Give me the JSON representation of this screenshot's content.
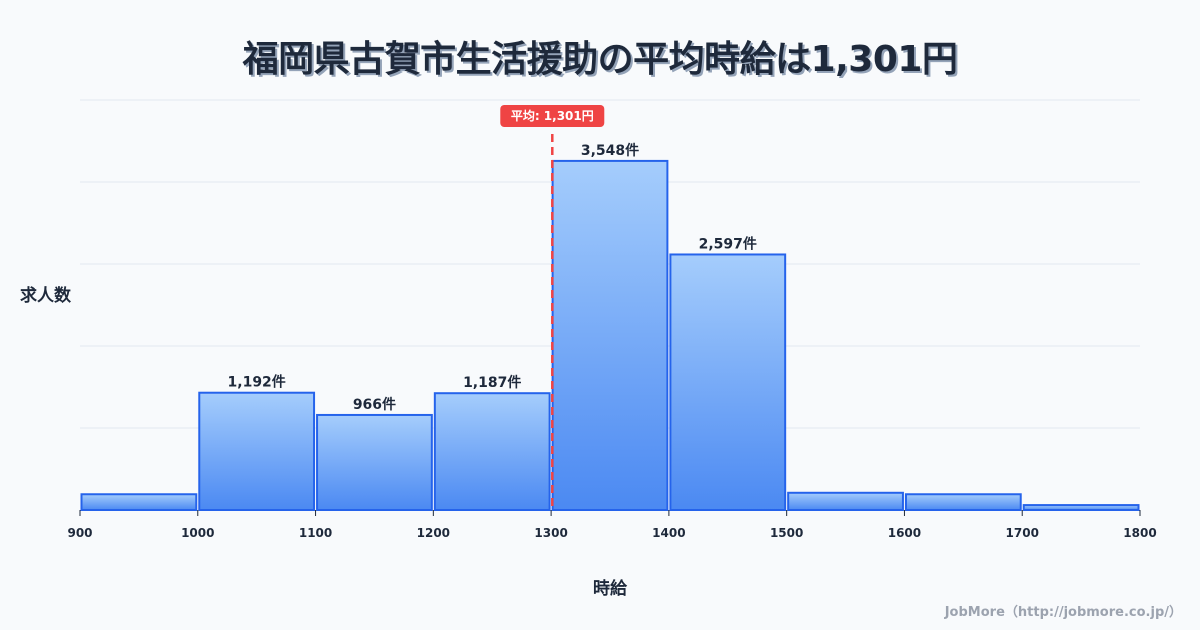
{
  "title": "福岡県古賀市生活援助の平均時給は1,301円",
  "axes": {
    "ylabel": "求人数",
    "xlabel": "時給"
  },
  "credit": "JobMore（http://jobmore.co.jp/）",
  "mean_marker": {
    "label": "平均: 1,301円",
    "value": 1301,
    "color": "#ef4444"
  },
  "colors": {
    "bar_top": "#a5cdfc",
    "bar_bottom": "#4b89f2",
    "bar_stroke": "#2563eb",
    "grid": "#e2e8f0",
    "text": "#1e293b"
  },
  "chart_data": {
    "type": "bar",
    "title": "福岡県古賀市生活援助の平均時給は1,301円",
    "xlabel": "時給",
    "ylabel": "求人数",
    "bins": [
      {
        "from": 900,
        "to": 1000,
        "value": 160,
        "label": ""
      },
      {
        "from": 1000,
        "to": 1100,
        "value": 1192,
        "label": "1,192件"
      },
      {
        "from": 1100,
        "to": 1200,
        "value": 966,
        "label": "966件"
      },
      {
        "from": 1200,
        "to": 1300,
        "value": 1187,
        "label": "1,187件"
      },
      {
        "from": 1300,
        "to": 1400,
        "value": 3548,
        "label": "3,548件"
      },
      {
        "from": 1400,
        "to": 1500,
        "value": 2597,
        "label": "2,597件"
      },
      {
        "from": 1500,
        "to": 1600,
        "value": 175,
        "label": ""
      },
      {
        "from": 1600,
        "to": 1700,
        "value": 160,
        "label": ""
      },
      {
        "from": 1700,
        "to": 1800,
        "value": 50,
        "label": ""
      }
    ],
    "categories": [
      "900-1000",
      "1000-1100",
      "1100-1200",
      "1200-1300",
      "1300-1400",
      "1400-1500",
      "1500-1600",
      "1600-1700",
      "1700-1800"
    ],
    "values": [
      160,
      1192,
      966,
      1187,
      3548,
      2597,
      175,
      160,
      50
    ],
    "x_ticks": [
      "900",
      "1000",
      "1100",
      "1200",
      "1300",
      "1400",
      "1500",
      "1600",
      "1700",
      "1800"
    ],
    "xlim": [
      900,
      1800
    ],
    "ylim": [
      0,
      4167
    ],
    "grid": true,
    "mean": 1301,
    "annotations": [
      "平均: 1,301円"
    ]
  }
}
